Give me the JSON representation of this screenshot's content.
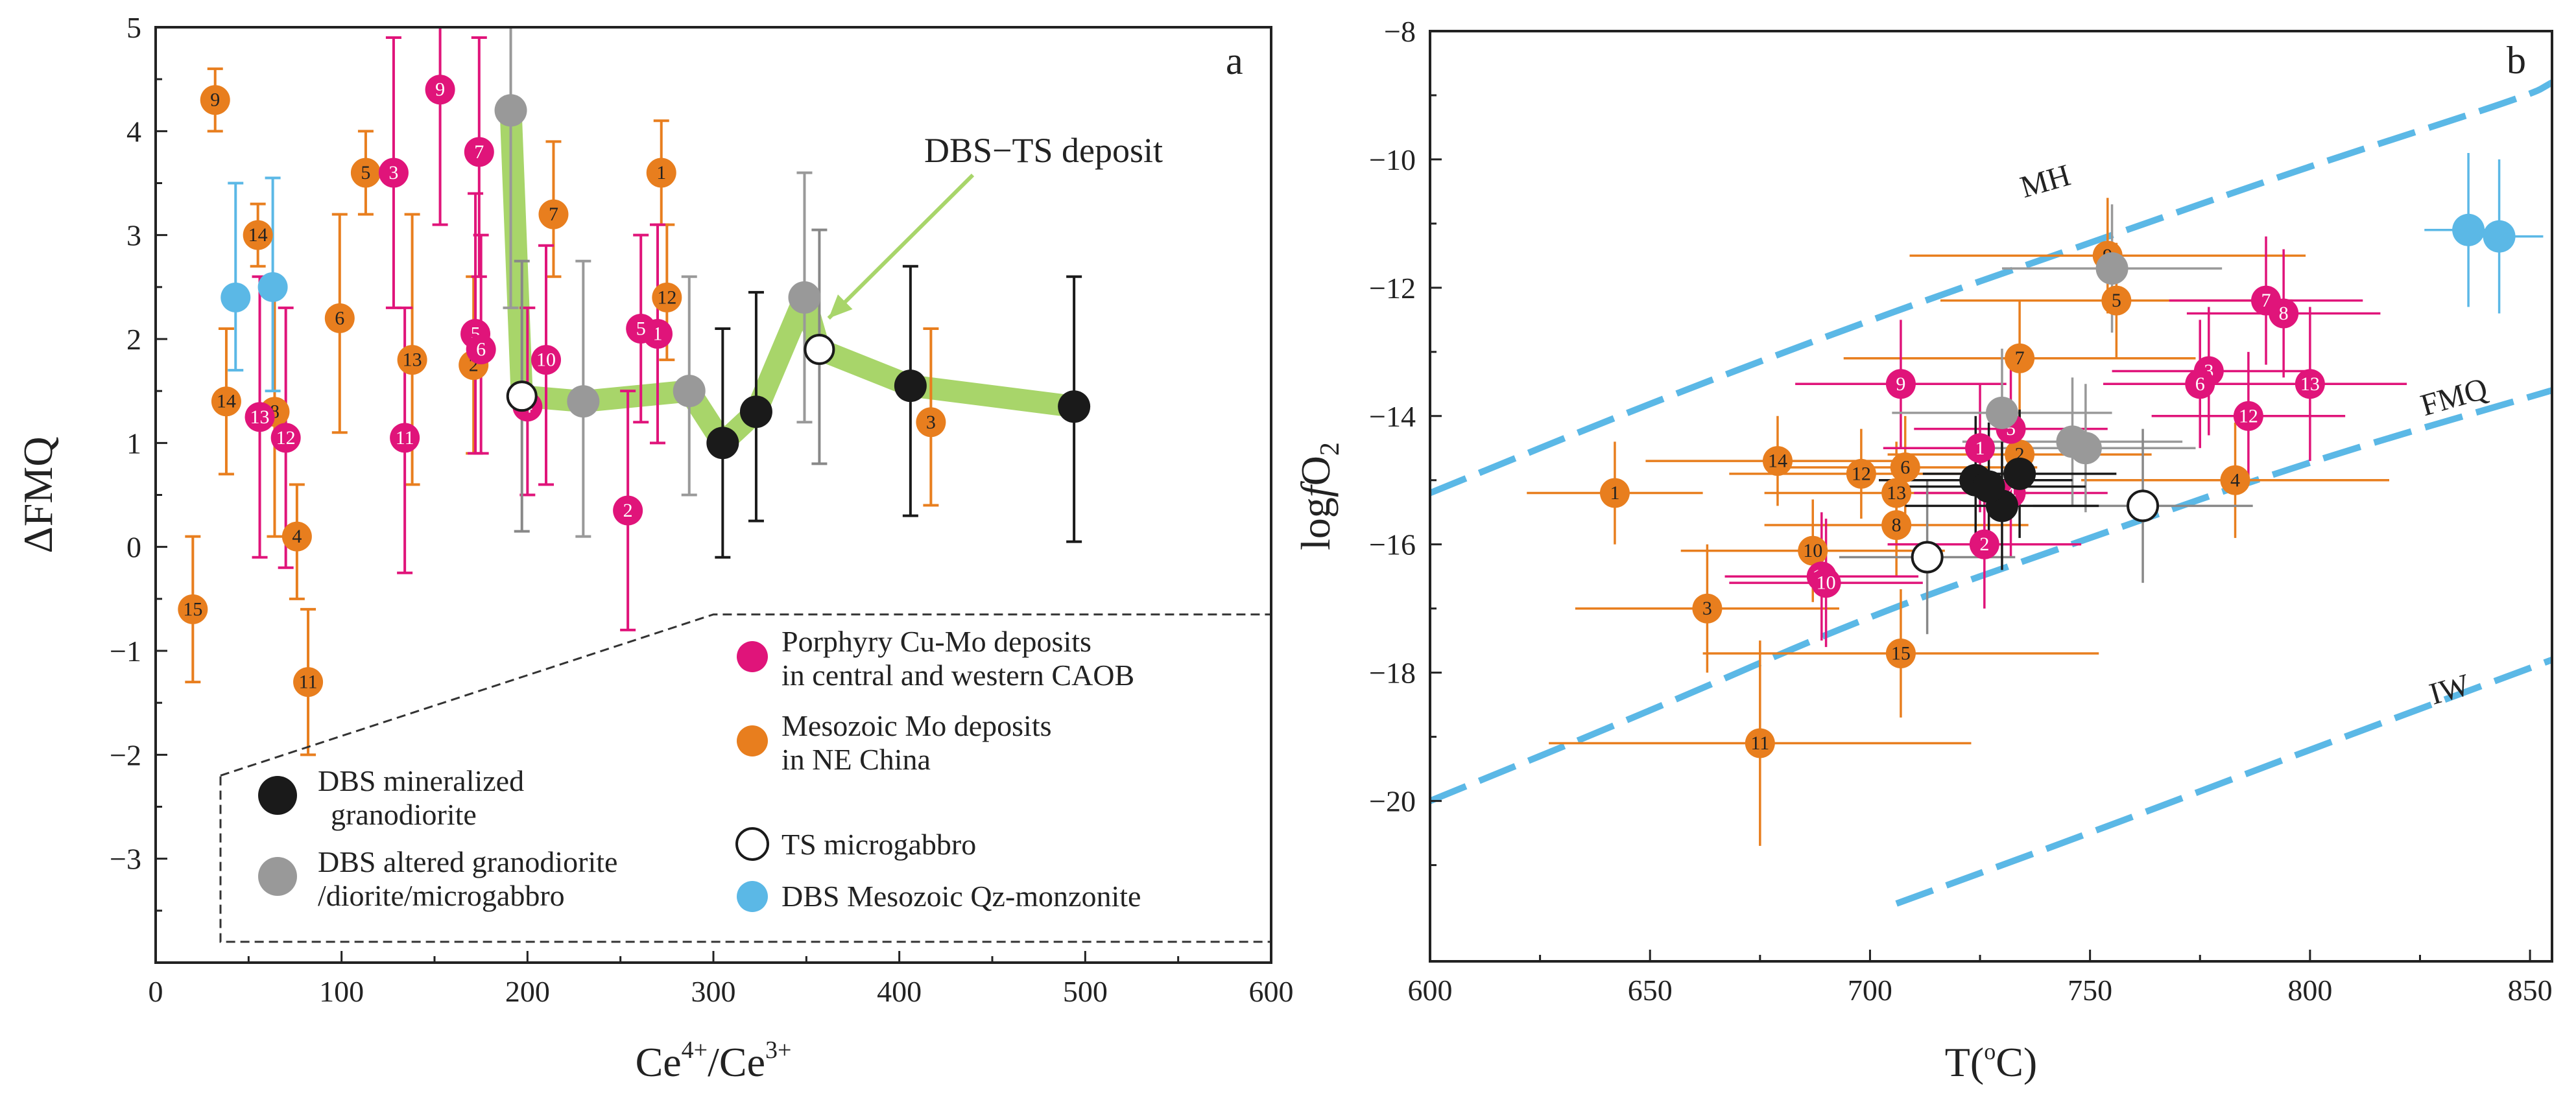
{
  "colors": {
    "cu_mo": "#e0147a",
    "mo": "#e87e1e",
    "dbs_min": "#1a1a1a",
    "dbs_alt": "#999999",
    "ts": "#ffffff",
    "qz": "#5bb8e6",
    "path": "#a8d56a",
    "curve": "#5bb8e6"
  },
  "chart_data": [
    {
      "type": "scatter",
      "panel_label": "a",
      "xlabel": "Ce4+/Ce3+",
      "xlabel_main": "Ce",
      "xlabel_sup1": "4+",
      "xlabel_mid": "/Ce",
      "xlabel_sup2": "3+",
      "ylabel": "ΔFMQ",
      "xlim": [
        0,
        600
      ],
      "ylim": [
        -4,
        5
      ],
      "xticks": [
        "0",
        "100",
        "200",
        "300",
        "400",
        "500",
        "600"
      ],
      "yticks": [
        "5",
        "4",
        "3",
        "2",
        "1",
        "0",
        "−1",
        "−2",
        "−3"
      ],
      "annotation": "DBS−TS deposit",
      "legend": [
        {
          "key": "cu_mo",
          "line1": "Porphyry Cu-Mo deposits",
          "line2": "in central and western CAOB"
        },
        {
          "key": "mo",
          "line1": "Mesozoic Mo deposits",
          "line2": "in NE China"
        },
        {
          "key": "dbs_min",
          "line1": "DBS mineralized",
          "line2": "granodiorite"
        },
        {
          "key": "dbs_alt",
          "line1": "DBS altered granodiorite",
          "line2": "/diorite/microgabbro"
        },
        {
          "key": "ts",
          "line1": "TS microgabbro",
          "line2": ""
        },
        {
          "key": "qz",
          "line1": "DBS Mesozoic Qz-monzonite",
          "line2": ""
        }
      ],
      "path_points": [
        [
          191,
          4.2
        ],
        [
          197,
          1.45
        ],
        [
          230,
          1.4
        ],
        [
          287,
          1.5
        ],
        [
          305,
          1.0
        ],
        [
          323,
          1.3
        ],
        [
          349,
          2.4
        ],
        [
          357,
          1.9
        ],
        [
          406,
          1.55
        ],
        [
          494,
          1.35
        ]
      ],
      "series": [
        {
          "name": "Porphyry Cu-Mo deposits",
          "key": "cu_mo",
          "points": [
            {
              "label": "9",
              "x": 153,
              "y": 4.4,
              "ylo": 3.1,
              "yhi": 5.0
            },
            {
              "label": "7",
              "x": 174,
              "y": 3.8,
              "ylo": 2.6,
              "yhi": 4.9
            },
            {
              "label": "3",
              "x": 128,
              "y": 3.6,
              "ylo": 2.3,
              "yhi": 4.9
            },
            {
              "label": "5",
              "x": 172,
              "y": 2.05,
              "ylo": 0.9,
              "yhi": 3.4
            },
            {
              "label": "6",
              "x": 175,
              "y": 1.9,
              "ylo": 0.9,
              "yhi": 3.0
            },
            {
              "label": "10",
              "x": 210,
              "y": 1.8,
              "ylo": 0.6,
              "yhi": 2.9
            },
            {
              "label": "4",
              "x": 200,
              "y": 1.35,
              "ylo": 0.5,
              "yhi": 2.3
            },
            {
              "label": "1",
              "x": 270,
              "y": 2.05,
              "ylo": 1.0,
              "yhi": 3.1
            },
            {
              "label": "5",
              "x": 261,
              "y": 2.1,
              "ylo": 1.2,
              "yhi": 3.0
            },
            {
              "label": "13",
              "x": 56,
              "y": 1.25,
              "ylo": -0.1,
              "yhi": 2.6
            },
            {
              "label": "12",
              "x": 70,
              "y": 1.05,
              "ylo": -0.2,
              "yhi": 2.3
            },
            {
              "label": "11",
              "x": 134,
              "y": 1.05,
              "ylo": -0.25,
              "yhi": 2.3
            },
            {
              "label": "2",
              "x": 254,
              "y": 0.35,
              "ylo": -0.8,
              "yhi": 1.5
            }
          ]
        },
        {
          "name": "Mesozoic Mo deposits",
          "key": "mo",
          "points": [
            {
              "label": "9",
              "x": 32,
              "y": 4.3,
              "ylo": 4.0,
              "yhi": 4.6
            },
            {
              "label": "5",
              "x": 113,
              "y": 3.6,
              "ylo": 3.2,
              "yhi": 4.0
            },
            {
              "label": "14",
              "x": 55,
              "y": 3.0,
              "ylo": 2.7,
              "yhi": 3.3
            },
            {
              "label": "6",
              "x": 99,
              "y": 2.2,
              "ylo": 1.1,
              "yhi": 3.2
            },
            {
              "label": "13",
              "x": 138,
              "y": 1.8,
              "ylo": 0.6,
              "yhi": 3.2
            },
            {
              "label": "14",
              "x": 38,
              "y": 1.4,
              "ylo": 0.7,
              "yhi": 2.1
            },
            {
              "label": "8",
              "x": 64,
              "y": 1.3,
              "ylo": 0.1,
              "yhi": 2.5
            },
            {
              "label": "2",
              "x": 171,
              "y": 1.75,
              "ylo": 0.9,
              "yhi": 2.6
            },
            {
              "label": "7",
              "x": 214,
              "y": 3.2,
              "ylo": 2.6,
              "yhi": 3.9
            },
            {
              "label": "1",
              "x": 272,
              "y": 3.6,
              "ylo": 3.1,
              "yhi": 4.1
            },
            {
              "label": "12",
              "x": 275,
              "y": 2.4,
              "ylo": 1.8,
              "yhi": 3.1
            },
            {
              "label": "3",
              "x": 417,
              "y": 1.2,
              "ylo": 0.4,
              "yhi": 2.1
            },
            {
              "label": "4",
              "x": 76,
              "y": 0.1,
              "ylo": -0.5,
              "yhi": 0.6
            },
            {
              "label": "15",
              "x": 20,
              "y": -0.6,
              "ylo": -1.3,
              "yhi": 0.1
            },
            {
              "label": "11",
              "x": 82,
              "y": -1.3,
              "ylo": -2.0,
              "yhi": -0.6
            }
          ]
        },
        {
          "name": "DBS mineralized granodiorite",
          "key": "dbs_min",
          "points": [
            {
              "x": 305,
              "y": 1.0,
              "ylo": -0.1,
              "yhi": 2.1
            },
            {
              "x": 323,
              "y": 1.3,
              "ylo": 0.25,
              "yhi": 2.45
            },
            {
              "x": 406,
              "y": 1.55,
              "ylo": 0.3,
              "yhi": 2.7
            },
            {
              "x": 494,
              "y": 1.35,
              "ylo": 0.05,
              "yhi": 2.6
            }
          ]
        },
        {
          "name": "DBS altered granodiorite/diorite/microgabbro",
          "key": "dbs_alt",
          "points": [
            {
              "x": 191,
              "y": 4.2,
              "ylo": 2.3,
              "yhi": 5.0
            },
            {
              "x": 230,
              "y": 1.4,
              "ylo": 0.1,
              "yhi": 2.75
            },
            {
              "x": 287,
              "y": 1.5,
              "ylo": 0.5,
              "yhi": 2.6
            },
            {
              "x": 349,
              "y": 2.4,
              "ylo": 1.2,
              "yhi": 3.6
            }
          ]
        },
        {
          "name": "TS microgabbro",
          "key": "ts",
          "points": [
            {
              "x": 197,
              "y": 1.45,
              "ylo": 0.15,
              "yhi": 2.75
            },
            {
              "x": 357,
              "y": 1.9,
              "ylo": 0.8,
              "yhi": 3.05
            }
          ]
        },
        {
          "name": "DBS Mesozoic Qz-monzonite",
          "key": "qz",
          "points": [
            {
              "x": 43,
              "y": 2.4,
              "ylo": 1.7,
              "yhi": 3.5
            },
            {
              "x": 63,
              "y": 2.5,
              "ylo": 1.5,
              "yhi": 3.55
            }
          ]
        }
      ]
    },
    {
      "type": "scatter",
      "panel_label": "b",
      "xlabel": "T(°C)",
      "xlabel_main": "T(",
      "xlabel_sup": "o",
      "xlabel_end": "C)",
      "ylabel": "logfO2",
      "ylabel_a": "log",
      "ylabel_b": "f",
      "ylabel_c": "O",
      "ylabel_d": "2",
      "xlim": [
        600,
        855
      ],
      "ylim": [
        -22.5,
        -8
      ],
      "xticks": [
        "600",
        "650",
        "700",
        "750",
        "800",
        "850"
      ],
      "yticks": [
        "−8",
        "−10",
        "−12",
        "−14",
        "−16",
        "−18",
        "−20"
      ],
      "curves": [
        {
          "name": "MH",
          "points": [
            [
              600,
              -15.2
            ],
            [
              650,
              -13.8
            ],
            [
              700,
              -12.5
            ],
            [
              750,
              -11.3
            ],
            [
              800,
              -10.1
            ],
            [
              850,
              -9.0
            ],
            [
              855,
              -8.8
            ]
          ],
          "label_x": 735,
          "label_y": -10.6
        },
        {
          "name": "FMQ",
          "points": [
            [
              600,
              -20.0
            ],
            [
              650,
              -18.6
            ],
            [
              700,
              -17.1
            ],
            [
              750,
              -15.9
            ],
            [
              800,
              -14.7
            ],
            [
              855,
              -13.6
            ]
          ],
          "label_x": 826,
          "label_y": -14.0
        },
        {
          "name": "IW",
          "points": [
            [
              706,
              -21.6
            ],
            [
              750,
              -20.5
            ],
            [
              800,
              -19.2
            ],
            [
              855,
              -17.8
            ]
          ],
          "label_x": 828,
          "label_y": -18.5
        }
      ],
      "series": [
        {
          "name": "Porphyry Cu-Mo deposits",
          "key": "cu_mo",
          "points": [
            {
              "label": "9",
              "x": 707,
              "y": -13.5,
              "xerr": 24,
              "yerr": 1.0
            },
            {
              "label": "7",
              "x": 790,
              "y": -12.2,
              "xerr": 22,
              "yerr": 1.0
            },
            {
              "label": "8",
              "x": 794,
              "y": -12.4,
              "xerr": 22,
              "yerr": 1.0
            },
            {
              "label": "3",
              "x": 777,
              "y": -13.3,
              "xerr": 22,
              "yerr": 1.0
            },
            {
              "label": "6",
              "x": 775,
              "y": -13.5,
              "xerr": 22,
              "yerr": 1.0
            },
            {
              "label": "13",
              "x": 800,
              "y": -13.5,
              "xerr": 22,
              "yerr": 1.2
            },
            {
              "label": "12",
              "x": 786,
              "y": -14.0,
              "xerr": 22,
              "yerr": 1.0
            },
            {
              "label": "5",
              "x": 732,
              "y": -14.2,
              "xerr": 22,
              "yerr": 1.0
            },
            {
              "label": "1",
              "x": 725,
              "y": -14.5,
              "xerr": 22,
              "yerr": 1.0
            },
            {
              "label": "4",
              "x": 732,
              "y": -15.2,
              "xerr": 22,
              "yerr": 1.0
            },
            {
              "label": "2",
              "x": 726,
              "y": -16.0,
              "xerr": 22,
              "yerr": 1.0
            },
            {
              "label": "11",
              "x": 689,
              "y": -16.5,
              "xerr": 22,
              "yerr": 1.0
            },
            {
              "label": "10",
              "x": 690,
              "y": -16.6,
              "xerr": 22,
              "yerr": 1.0
            }
          ]
        },
        {
          "name": "Mesozoic Mo deposits",
          "key": "mo",
          "points": [
            {
              "label": "9",
              "x": 754,
              "y": -11.5,
              "xerr": 45,
              "yerr": 0.9
            },
            {
              "label": "5",
              "x": 756,
              "y": -12.2,
              "xerr": 40,
              "yerr": 0.9
            },
            {
              "label": "7",
              "x": 734,
              "y": -13.1,
              "xerr": 40,
              "yerr": 0.9
            },
            {
              "label": "14",
              "x": 679,
              "y": -14.7,
              "xerr": 30,
              "yerr": 0.7
            },
            {
              "label": "12",
              "x": 698,
              "y": -14.9,
              "xerr": 30,
              "yerr": 0.7
            },
            {
              "label": "6",
              "x": 708,
              "y": -14.8,
              "xerr": 30,
              "yerr": 0.8
            },
            {
              "label": "2",
              "x": 734,
              "y": -14.6,
              "xerr": 30,
              "yerr": 0.7
            },
            {
              "label": "13",
              "x": 706,
              "y": -15.2,
              "xerr": 30,
              "yerr": 0.8
            },
            {
              "label": "1",
              "x": 642,
              "y": -15.2,
              "xerr": 20,
              "yerr": 0.8
            },
            {
              "label": "8",
              "x": 706,
              "y": -15.7,
              "xerr": 30,
              "yerr": 0.8
            },
            {
              "label": "4",
              "x": 783,
              "y": -15.0,
              "xerr": 35,
              "yerr": 0.9
            },
            {
              "label": "10",
              "x": 687,
              "y": -16.1,
              "xerr": 30,
              "yerr": 0.8
            },
            {
              "label": "3",
              "x": 663,
              "y": -17.0,
              "xerr": 30,
              "yerr": 1.0
            },
            {
              "label": "15",
              "x": 707,
              "y": -17.7,
              "xerr": 45,
              "yerr": 1.0
            },
            {
              "label": "11",
              "x": 675,
              "y": -19.1,
              "xerr": 48,
              "yerr": 1.6
            }
          ]
        },
        {
          "name": "DBS mineralized granodiorite",
          "key": "dbs_min",
          "points": [
            {
              "x": 724,
              "y": -15.0,
              "xerr": 22,
              "yerr": 1.0
            },
            {
              "x": 730,
              "y": -15.4,
              "xerr": 22,
              "yerr": 1.0
            },
            {
              "x": 734,
              "y": -14.9,
              "xerr": 22,
              "yerr": 1.0
            },
            {
              "x": 727,
              "y": -15.1,
              "xerr": 22,
              "yerr": 1.0
            }
          ]
        },
        {
          "name": "DBS altered granodiorite/diorite/microgabbro",
          "key": "dbs_alt",
          "points": [
            {
              "x": 730,
              "y": -13.95,
              "xerr": 25,
              "yerr": 1.0
            },
            {
              "x": 746,
              "y": -14.4,
              "xerr": 25,
              "yerr": 1.0
            },
            {
              "x": 749,
              "y": -14.5,
              "xerr": 25,
              "yerr": 1.0
            },
            {
              "x": 755,
              "y": -11.7,
              "xerr": 25,
              "yerr": 1.0
            }
          ]
        },
        {
          "name": "TS microgabbro",
          "key": "ts",
          "points": [
            {
              "x": 713,
              "y": -16.2,
              "xerr": 20,
              "yerr": 1.2
            },
            {
              "x": 762,
              "y": -15.4,
              "xerr": 25,
              "yerr": 1.2
            }
          ]
        },
        {
          "name": "DBS Mesozoic Qz-monzonite",
          "key": "qz",
          "points": [
            {
              "x": 836,
              "y": -11.1,
              "xerr": 10,
              "yerr": 1.2
            },
            {
              "x": 843,
              "y": -11.2,
              "xerr": 10,
              "yerr": 1.2
            }
          ]
        }
      ]
    }
  ]
}
